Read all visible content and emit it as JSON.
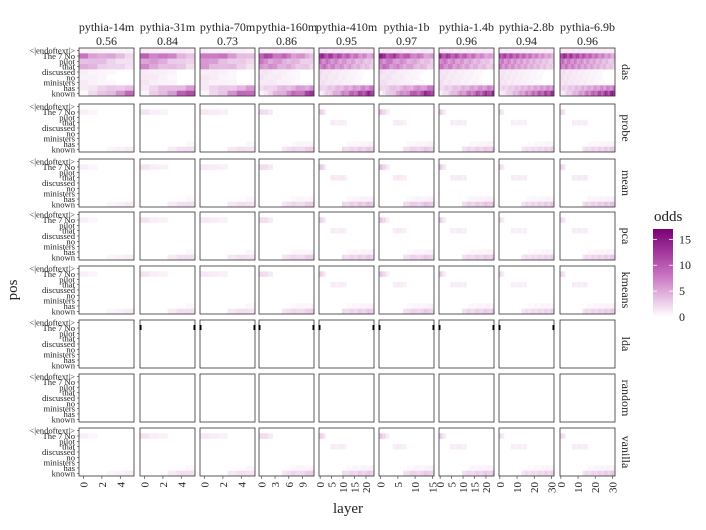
{
  "chart_data": {
    "type": "heatmap",
    "xlabel": "layer",
    "ylabel": "pos",
    "legend": {
      "title": "odds",
      "ticks": [
        0,
        5,
        10,
        15
      ],
      "min": 0,
      "max": 17,
      "low_color": "#ffffff",
      "high_color": "#7a0177",
      "placement": "right"
    },
    "positions": [
      "<|endoftext|>",
      "The 7 No",
      "pilot",
      "that",
      "discussed",
      "no",
      "ministers",
      "has",
      "known"
    ],
    "models": [
      {
        "name": "pythia-14m",
        "score": "0.56",
        "layers": 6,
        "ticks": [
          "0",
          "2",
          "4"
        ]
      },
      {
        "name": "pythia-31m",
        "score": "0.84",
        "layers": 6,
        "ticks": [
          "0",
          "2",
          "4"
        ]
      },
      {
        "name": "pythia-70m",
        "score": "0.73",
        "layers": 6,
        "ticks": [
          "0",
          "2",
          "4"
        ]
      },
      {
        "name": "pythia-160m",
        "score": "0.86",
        "layers": 12,
        "ticks": [
          "0",
          "3",
          "6",
          "9"
        ]
      },
      {
        "name": "pythia-410m",
        "score": "0.95",
        "layers": 24,
        "ticks": [
          "0",
          "5",
          "10",
          "15",
          "20"
        ]
      },
      {
        "name": "pythia-1b",
        "score": "0.97",
        "layers": 16,
        "ticks": [
          "0",
          "5",
          "10",
          "15"
        ]
      },
      {
        "name": "pythia-1.4b",
        "score": "0.96",
        "layers": 24,
        "ticks": [
          "0",
          "5",
          "10",
          "15",
          "20"
        ]
      },
      {
        "name": "pythia-2.8b",
        "score": "0.94",
        "layers": 32,
        "ticks": [
          "0",
          "10",
          "20",
          "30"
        ]
      },
      {
        "name": "pythia-6.9b",
        "score": "0.96",
        "layers": 32,
        "ticks": [
          "0",
          "10",
          "20",
          "30"
        ]
      }
    ],
    "methods": [
      {
        "name": "das",
        "strength": [
          0.55,
          0.75,
          0.7,
          0.85,
          1.0,
          1.0,
          0.95,
          0.9,
          1.0
        ],
        "mode": "das"
      },
      {
        "name": "probe",
        "strength": [
          0.1,
          0.2,
          0.2,
          0.3,
          0.35,
          0.35,
          0.35,
          0.3,
          0.35
        ],
        "mode": "weak"
      },
      {
        "name": "mean",
        "strength": [
          0.1,
          0.2,
          0.2,
          0.3,
          0.4,
          0.4,
          0.4,
          0.35,
          0.4
        ],
        "mode": "weak"
      },
      {
        "name": "pca",
        "strength": [
          0.1,
          0.2,
          0.2,
          0.3,
          0.35,
          0.35,
          0.35,
          0.3,
          0.35
        ],
        "mode": "weak"
      },
      {
        "name": "kmeans",
        "strength": [
          0.1,
          0.2,
          0.2,
          0.3,
          0.35,
          0.35,
          0.35,
          0.3,
          0.35
        ],
        "mode": "weak"
      },
      {
        "name": "lda",
        "strength": [
          0.02,
          0.02,
          0.02,
          0.02,
          0.02,
          0.02,
          0.02,
          0.02,
          0.02
        ],
        "mode": "none"
      },
      {
        "name": "random",
        "strength": [
          0.0,
          0.0,
          0.0,
          0.0,
          0.0,
          0.0,
          0.0,
          0.0,
          0.0
        ],
        "mode": "none"
      },
      {
        "name": "vanilla",
        "strength": [
          0.1,
          0.2,
          0.2,
          0.3,
          0.35,
          0.35,
          0.35,
          0.3,
          0.35
        ],
        "mode": "weak"
      }
    ],
    "grid": false
  }
}
